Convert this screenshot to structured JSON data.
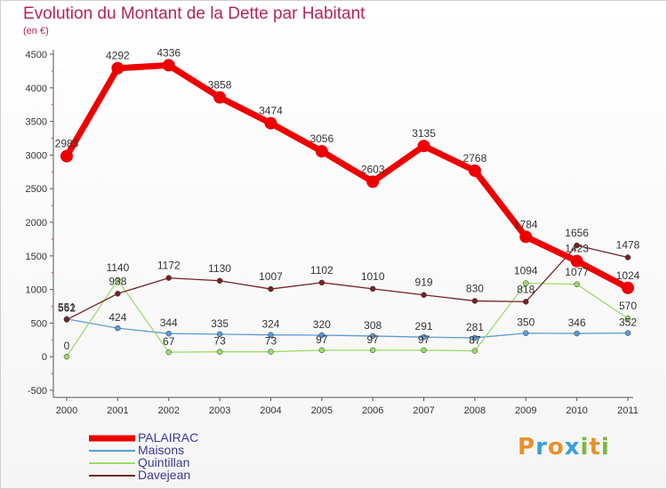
{
  "title": "Evolution du Montant de la Dette par Habitant",
  "subtitle": "(en €)",
  "logo": {
    "text": "Proxiti",
    "colors": [
      "#e8912d",
      "#3aa0d8",
      "#e8912d",
      "#3aa0d8",
      "#7ab83a",
      "#e8912d",
      "#7ab83a"
    ]
  },
  "chart_data": {
    "type": "line",
    "x": [
      "2000",
      "2001",
      "2002",
      "2003",
      "2004",
      "2005",
      "2006",
      "2007",
      "2008",
      "2009",
      "2010",
      "2011"
    ],
    "yticks": [
      "-500",
      "0",
      "500",
      "1000",
      "1500",
      "2000",
      "2500",
      "3000",
      "3500",
      "4000",
      "4500"
    ],
    "ylim": [
      -500,
      4500
    ],
    "grid": false,
    "legend_position": "bottom-left",
    "series": [
      {
        "name": "PALAIRAC",
        "color": "#ee0000",
        "values": [
          2983,
          4292,
          4336,
          3858,
          3474,
          3056,
          2603,
          3135,
          2768,
          1784,
          1423,
          1024
        ],
        "labels": [
          "2983",
          "4292",
          "4336",
          "3858",
          "3474",
          "3056",
          "2603",
          "3135",
          "2768",
          "1784",
          "1423",
          "1024"
        ]
      },
      {
        "name": "Maisons",
        "color": "#5b9bd5",
        "values": [
          562,
          424,
          344,
          335,
          324,
          320,
          308,
          291,
          281,
          350,
          346,
          352
        ],
        "labels": [
          "562",
          "424",
          "344",
          "335",
          "324",
          "320",
          "308",
          "291",
          "281",
          "350",
          "346",
          "352"
        ]
      },
      {
        "name": "Quintillan",
        "color": "#99dd66",
        "values": [
          0,
          1140,
          67,
          73,
          73,
          97,
          97,
          97,
          87,
          1094,
          1077,
          570
        ],
        "labels": [
          "0",
          "1140",
          "67",
          "73",
          "73",
          "97",
          "97",
          "97",
          "87",
          "1094",
          "1077",
          "570"
        ]
      },
      {
        "name": "Davejean",
        "color": "#772222",
        "values": [
          551,
          938,
          1172,
          1130,
          1007,
          1102,
          1010,
          919,
          830,
          818,
          1656,
          1478
        ],
        "labels": [
          "551",
          "938",
          "1172",
          "1130",
          "1007",
          "1102",
          "1010",
          "919",
          "830",
          "818",
          "1656",
          "1478"
        ]
      }
    ]
  }
}
